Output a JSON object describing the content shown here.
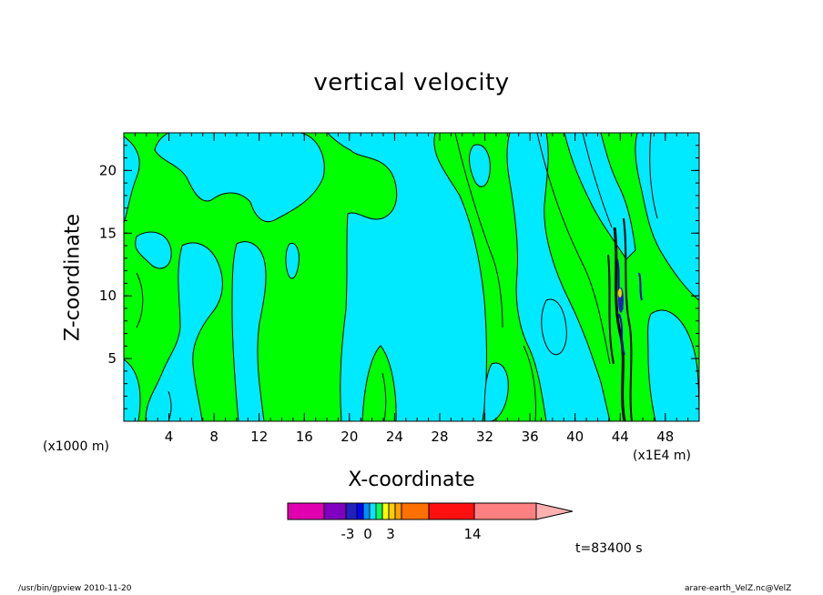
{
  "chart_data": {
    "type": "heatmap",
    "title": "vertical velocity",
    "xlabel": "X-coordinate",
    "ylabel": "Z-coordinate",
    "x_unit_left": "(x1000 m)",
    "x_unit_right": "(x1E4 m)",
    "xlim": [
      0,
      51
    ],
    "ylim": [
      0,
      23
    ],
    "x_ticks": [
      4,
      8,
      12,
      16,
      20,
      24,
      28,
      32,
      36,
      40,
      44,
      48
    ],
    "y_ticks": [
      5,
      10,
      15,
      20
    ],
    "colorbar": {
      "levels": [
        "-3",
        "0",
        "3",
        "14"
      ],
      "colors": [
        "#e000b0",
        "#8000c0",
        "#2020c0",
        "#0000ff",
        "#0090ff",
        "#00e8ff",
        "#00ff60",
        "#ffff00",
        "#ffd000",
        "#ffa000",
        "#ff7000",
        "#ff1010",
        "#ff8080",
        "#ffb0b0"
      ]
    },
    "dominant_colors": {
      "positive": "#00ff00",
      "negative": "#00eaff",
      "contour": "#000000"
    },
    "time_label": "t=83400 s",
    "grid": false
  },
  "footer": {
    "left": "/usr/bin/gpview   2010-11-20",
    "right": "arare-earth_VelZ.nc@VelZ"
  }
}
